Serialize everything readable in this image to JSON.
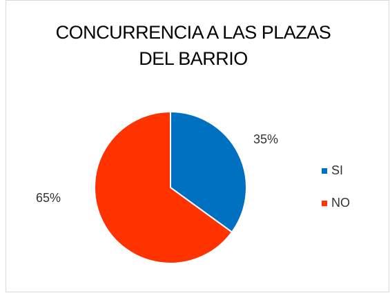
{
  "chart_data": {
    "type": "pie",
    "title": "CONCURRENCIA A LAS PLAZAS DEL BARRIO",
    "categories": [
      "SI",
      "NO"
    ],
    "values": [
      35,
      65
    ],
    "value_labels": [
      "35%",
      "65%"
    ],
    "colors": [
      "#0070c0",
      "#ff3300"
    ],
    "legend": "right"
  }
}
